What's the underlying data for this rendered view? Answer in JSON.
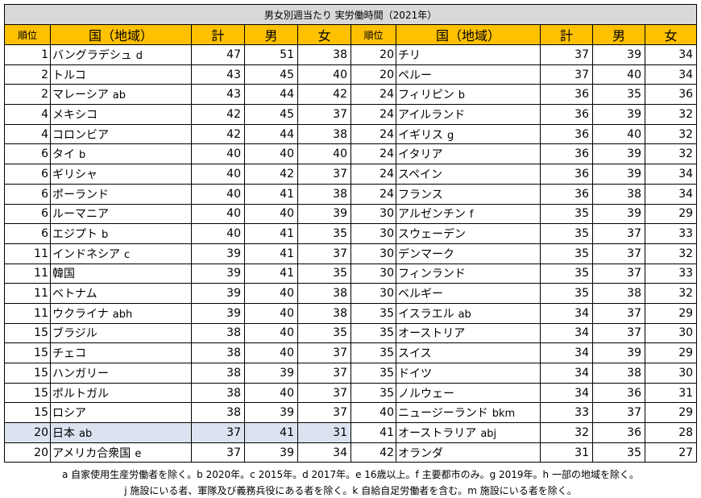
{
  "table": {
    "title": "男女別週当たり 実労働時間（2021年）",
    "headers": [
      "順位",
      "国（地域）",
      "計",
      "男",
      "女"
    ],
    "left": [
      {
        "rank": 1,
        "country": "バングラデシュ",
        "note": "d",
        "total": 47,
        "male": 51,
        "female": 38
      },
      {
        "rank": 2,
        "country": "トルコ",
        "total": 43,
        "male": 45,
        "female": 40
      },
      {
        "rank": 2,
        "country": "マレーシア",
        "note": "ab",
        "total": 43,
        "male": 44,
        "female": 42
      },
      {
        "rank": 4,
        "country": "メキシコ",
        "total": 42,
        "male": 45,
        "female": 37
      },
      {
        "rank": 4,
        "country": "コロンビア",
        "total": 42,
        "male": 44,
        "female": 38
      },
      {
        "rank": 6,
        "country": "タイ",
        "note": "b",
        "total": 40,
        "male": 40,
        "female": 40
      },
      {
        "rank": 6,
        "country": "ギリシャ",
        "total": 40,
        "male": 42,
        "female": 37
      },
      {
        "rank": 6,
        "country": "ポーランド",
        "total": 40,
        "male": 41,
        "female": 38
      },
      {
        "rank": 6,
        "country": "ルーマニア",
        "total": 40,
        "male": 40,
        "female": 39
      },
      {
        "rank": 6,
        "country": "エジプト",
        "note": "b",
        "total": 40,
        "male": 41,
        "female": 35
      },
      {
        "rank": 11,
        "country": "インドネシア",
        "note": "c",
        "total": 39,
        "male": 41,
        "female": 37
      },
      {
        "rank": 11,
        "country": "韓国",
        "total": 39,
        "male": 41,
        "female": 35
      },
      {
        "rank": 11,
        "country": "ベトナム",
        "total": 39,
        "male": 40,
        "female": 38
      },
      {
        "rank": 11,
        "country": "ウクライナ",
        "note": "abh",
        "total": 39,
        "male": 40,
        "female": 38
      },
      {
        "rank": 15,
        "country": "ブラジル",
        "total": 38,
        "male": 40,
        "female": 35
      },
      {
        "rank": 15,
        "country": "チェコ",
        "total": 38,
        "male": 40,
        "female": 37
      },
      {
        "rank": 15,
        "country": "ハンガリー",
        "total": 38,
        "male": 39,
        "female": 37
      },
      {
        "rank": 15,
        "country": "ポルトガル",
        "total": 38,
        "male": 40,
        "female": 37
      },
      {
        "rank": 15,
        "country": "ロシア",
        "total": 38,
        "male": 39,
        "female": 37
      },
      {
        "rank": 20,
        "country": "日本",
        "note": "ab",
        "total": 37,
        "male": 41,
        "female": 31,
        "highlighted": true
      },
      {
        "rank": 20,
        "country": "アメリカ合衆国",
        "note": "e",
        "total": 37,
        "male": 39,
        "female": 34
      }
    ],
    "right": [
      {
        "rank": 20,
        "country": "チリ",
        "total": 37,
        "male": 39,
        "female": 34
      },
      {
        "rank": 20,
        "country": "ペルー",
        "total": 37,
        "male": 40,
        "female": 34
      },
      {
        "rank": 24,
        "country": "フィリピン",
        "note": "b",
        "total": 36,
        "male": 35,
        "female": 36
      },
      {
        "rank": 24,
        "country": "アイルランド",
        "total": 36,
        "male": 39,
        "female": 32
      },
      {
        "rank": 24,
        "country": "イギリス",
        "note": "g",
        "total": 36,
        "male": 40,
        "female": 32
      },
      {
        "rank": 24,
        "country": "イタリア",
        "total": 36,
        "male": 39,
        "female": 32
      },
      {
        "rank": 24,
        "country": "スペイン",
        "total": 36,
        "male": 39,
        "female": 34
      },
      {
        "rank": 24,
        "country": "フランス",
        "total": 36,
        "male": 38,
        "female": 34
      },
      {
        "rank": 30,
        "country": "アルゼンチン",
        "note": "f",
        "total": 35,
        "male": 39,
        "female": 29
      },
      {
        "rank": 30,
        "country": "スウェーデン",
        "total": 35,
        "male": 37,
        "female": 33
      },
      {
        "rank": 30,
        "country": "デンマーク",
        "total": 35,
        "male": 37,
        "female": 32
      },
      {
        "rank": 30,
        "country": "フィンランド",
        "total": 35,
        "male": 37,
        "female": 33
      },
      {
        "rank": 30,
        "country": "ベルギー",
        "total": 35,
        "male": 38,
        "female": 32
      },
      {
        "rank": 35,
        "country": "イスラエル",
        "note": "ab",
        "total": 34,
        "male": 37,
        "female": 29
      },
      {
        "rank": 35,
        "country": "オーストリア",
        "total": 34,
        "male": 37,
        "female": 30
      },
      {
        "rank": 35,
        "country": "スイス",
        "total": 34,
        "male": 39,
        "female": 29
      },
      {
        "rank": 35,
        "country": "ドイツ",
        "total": 34,
        "male": 38,
        "female": 30
      },
      {
        "rank": 35,
        "country": "ノルウェー",
        "total": 34,
        "male": 36,
        "female": 31
      },
      {
        "rank": 40,
        "country": "ニュージーランド",
        "note": "bkm",
        "total": 33,
        "male": 37,
        "female": 29
      },
      {
        "rank": 41,
        "country": "オーストラリア",
        "note": "abj",
        "total": 32,
        "male": 36,
        "female": 28
      },
      {
        "rank": 42,
        "country": "オランダ",
        "total": 31,
        "male": 35,
        "female": 27
      }
    ]
  },
  "footnotes": [
    "a 自家使用生産労働者を除く。b 2020年。c 2015年。d 2017年。e 16歳以上。f 主要都市のみ。g 2019年。h 一部の地域を除く。",
    "j 施設にいる者、軍隊及び義務兵役にある者を除く。k 自給自足労働者を含む。m 施設にいる者を除く。"
  ]
}
